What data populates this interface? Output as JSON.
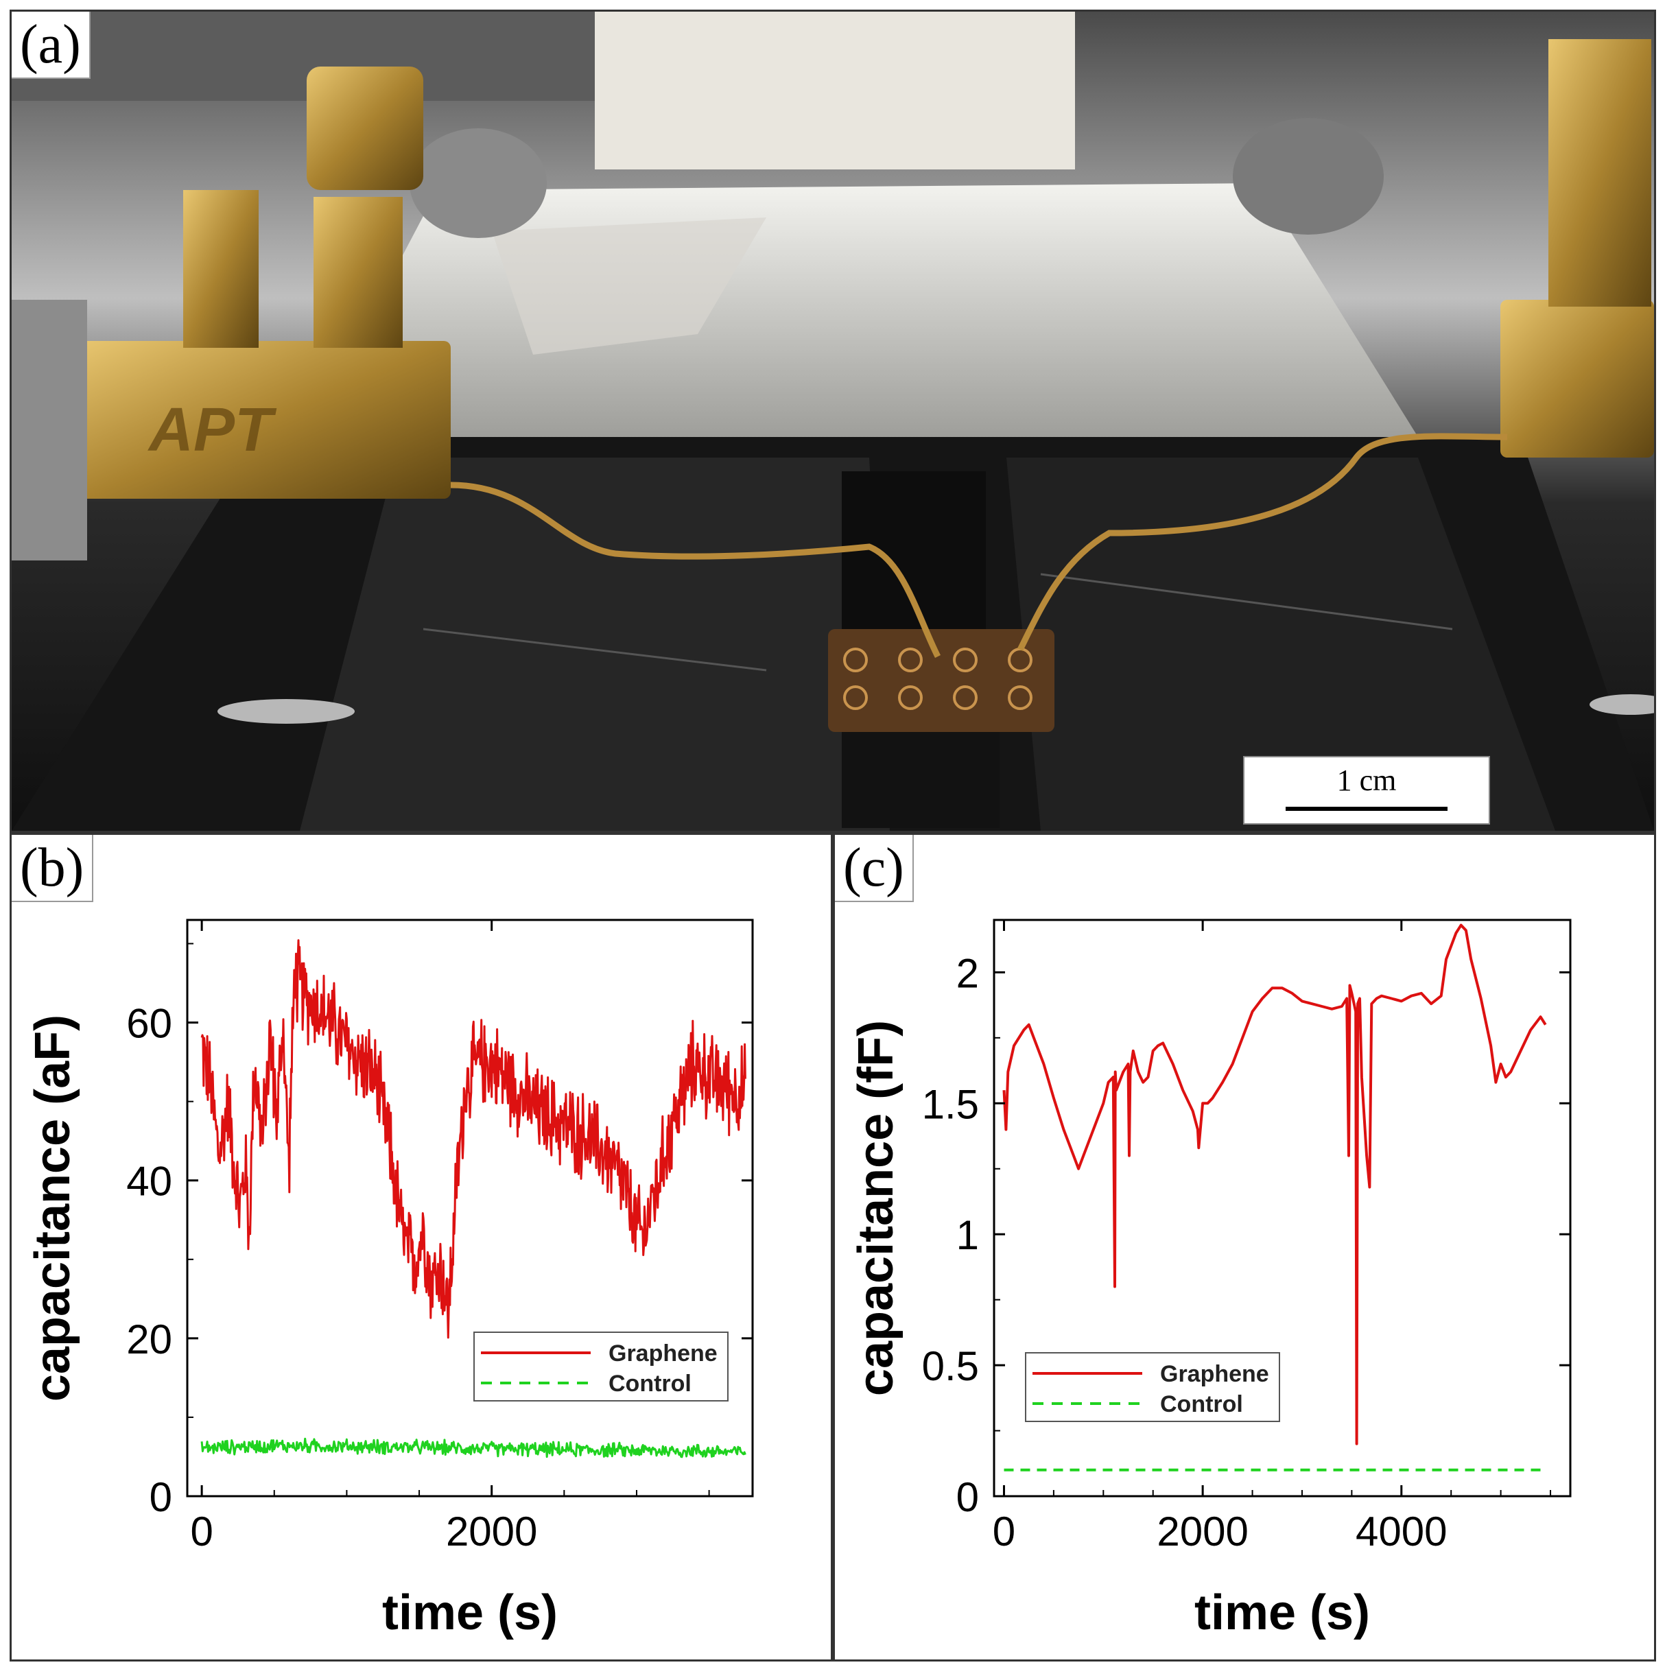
{
  "panels": {
    "a": {
      "letter": "(a)",
      "scale_bar_label": "1 cm",
      "logo_text": "APT"
    },
    "b": {
      "letter": "(b)"
    },
    "c": {
      "letter": "(c)"
    }
  },
  "colors": {
    "graphene": "#dd1111",
    "control": "#1fd21f"
  },
  "chart_data": [
    {
      "panel": "b",
      "type": "line",
      "xlabel": "time (s)",
      "ylabel": "capacitance (aF)",
      "xlim": [
        -100,
        3800
      ],
      "ylim": [
        0,
        73
      ],
      "xticks": [
        0,
        2000
      ],
      "xtick_labels": [
        "0",
        "2000"
      ],
      "yticks": [
        0,
        20,
        40,
        60
      ],
      "ytick_labels": [
        "0",
        "20",
        "40",
        "60"
      ],
      "legend": {
        "position": "lower-right",
        "entries": [
          "Graphene",
          "Control"
        ]
      },
      "series": [
        {
          "name": "Graphene",
          "style": "solid",
          "noisy": true,
          "x": [
            0,
            60,
            120,
            180,
            260,
            300,
            330,
            360,
            420,
            470,
            520,
            560,
            600,
            640,
            720,
            800,
            900,
            1000,
            1100,
            1200,
            1300,
            1370,
            1420,
            1480,
            1530,
            1580,
            1650,
            1700,
            1760,
            1820,
            1900,
            2000,
            2100,
            2200,
            2300,
            2400,
            2500,
            2600,
            2700,
            2800,
            2900,
            2950,
            3000,
            3050,
            3100,
            3150,
            3200,
            3300,
            3400,
            3500,
            3600,
            3700,
            3750
          ],
          "y": [
            57,
            52,
            43,
            50,
            36,
            42,
            33,
            55,
            45,
            58,
            48,
            60,
            42,
            66,
            63,
            62,
            60,
            57,
            55,
            53,
            44,
            35,
            31,
            30,
            34,
            27,
            29,
            23,
            40,
            52,
            55,
            55,
            53,
            51,
            49,
            48,
            47,
            46,
            45,
            43,
            40,
            37,
            34,
            33,
            37,
            40,
            44,
            50,
            55,
            53,
            52,
            51,
            52
          ]
        },
        {
          "name": "Control",
          "style": "dashed",
          "noisy": true,
          "x": [
            0,
            500,
            1000,
            1500,
            2000,
            2500,
            3000,
            3500,
            3750
          ],
          "y": [
            6.1,
            6.4,
            6.3,
            6.2,
            6.0,
            5.9,
            5.8,
            5.7,
            5.6
          ]
        }
      ]
    },
    {
      "panel": "c",
      "type": "line",
      "xlabel": "time (s)",
      "ylabel": "capacitance (fF)",
      "xlim": [
        -100,
        5700
      ],
      "ylim": [
        0,
        2.2
      ],
      "xticks": [
        0,
        2000,
        4000
      ],
      "xtick_labels": [
        "0",
        "2000",
        "4000"
      ],
      "yticks": [
        0,
        0.5,
        1,
        1.5,
        2
      ],
      "ytick_labels": [
        "0",
        "0.5",
        "1",
        "1.5",
        "2"
      ],
      "legend": {
        "position": "lower-left",
        "entries": [
          "Graphene",
          "Control"
        ]
      },
      "series": [
        {
          "name": "Graphene",
          "style": "solid",
          "noisy": false,
          "x": [
            0,
            20,
            40,
            100,
            200,
            250,
            300,
            400,
            500,
            600,
            700,
            750,
            800,
            900,
            1000,
            1050,
            1100,
            1115,
            1120,
            1130,
            1200,
            1250,
            1260,
            1270,
            1300,
            1350,
            1400,
            1450,
            1500,
            1550,
            1600,
            1700,
            1800,
            1900,
            1950,
            1960,
            2000,
            2050,
            2100,
            2200,
            2300,
            2400,
            2500,
            2600,
            2700,
            2800,
            2900,
            3000,
            3100,
            3200,
            3300,
            3400,
            3450,
            3470,
            3480,
            3500,
            3540,
            3550,
            3560,
            3580,
            3600,
            3650,
            3680,
            3700,
            3750,
            3800,
            3900,
            4000,
            4100,
            4200,
            4300,
            4400,
            4450,
            4500,
            4550,
            4600,
            4650,
            4700,
            4800,
            4900,
            4950,
            5000,
            5050,
            5100,
            5200,
            5300,
            5400,
            5450
          ],
          "y": [
            1.55,
            1.4,
            1.62,
            1.72,
            1.78,
            1.8,
            1.75,
            1.65,
            1.52,
            1.4,
            1.3,
            1.25,
            1.3,
            1.4,
            1.5,
            1.58,
            1.6,
            0.8,
            1.62,
            1.55,
            1.62,
            1.65,
            1.3,
            1.62,
            1.7,
            1.62,
            1.58,
            1.6,
            1.7,
            1.72,
            1.73,
            1.65,
            1.55,
            1.47,
            1.4,
            1.33,
            1.5,
            1.5,
            1.52,
            1.58,
            1.65,
            1.75,
            1.85,
            1.9,
            1.94,
            1.94,
            1.92,
            1.89,
            1.88,
            1.87,
            1.86,
            1.87,
            1.9,
            1.3,
            1.95,
            1.92,
            1.85,
            0.2,
            1.88,
            1.9,
            1.6,
            1.3,
            1.18,
            1.88,
            1.9,
            1.91,
            1.9,
            1.89,
            1.91,
            1.92,
            1.88,
            1.91,
            2.05,
            2.1,
            2.15,
            2.18,
            2.16,
            2.05,
            1.9,
            1.72,
            1.58,
            1.65,
            1.6,
            1.62,
            1.7,
            1.78,
            1.83,
            1.8
          ]
        },
        {
          "name": "Control",
          "style": "dashed",
          "noisy": false,
          "x": [
            0,
            5450
          ],
          "y": [
            0.1,
            0.1
          ]
        }
      ]
    }
  ]
}
